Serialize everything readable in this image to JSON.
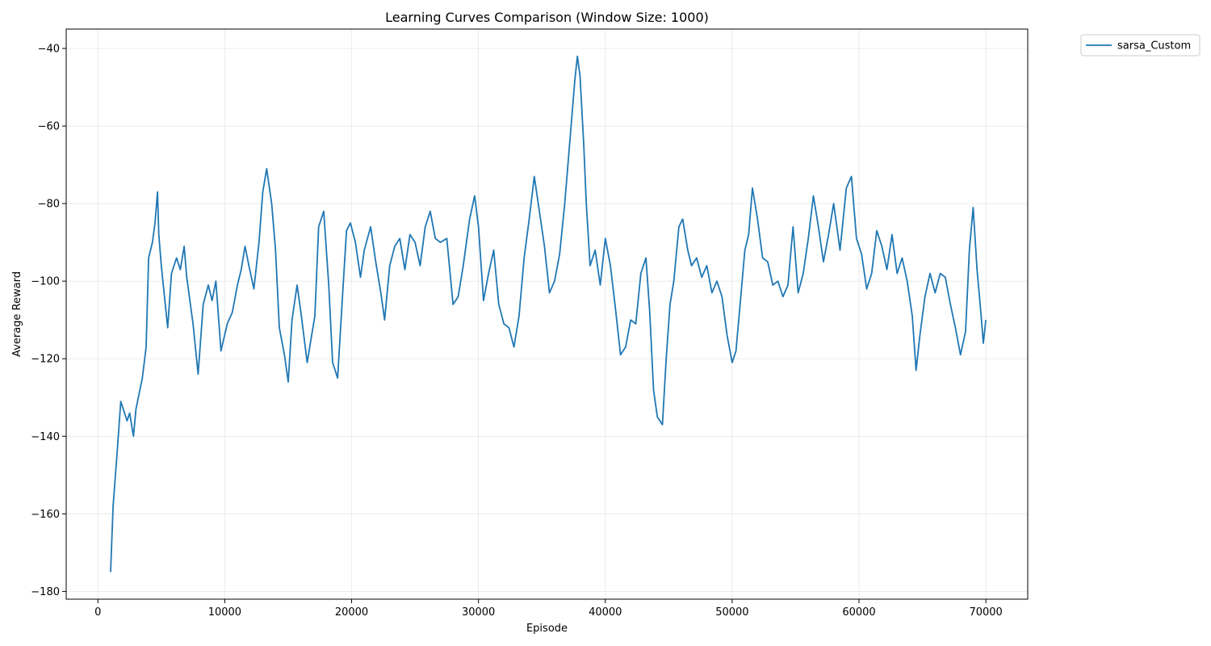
{
  "chart_data": {
    "type": "line",
    "title": "Learning Curves Comparison (Window Size: 1000)",
    "xlabel": "Episode",
    "ylabel": "Average Reward",
    "xlim": [
      -2500,
      73300
    ],
    "ylim": [
      -182,
      -35
    ],
    "xticks": [
      0,
      10000,
      20000,
      30000,
      40000,
      50000,
      60000,
      70000
    ],
    "yticks": [
      -180,
      -160,
      -140,
      -120,
      -100,
      -80,
      -60,
      -40
    ],
    "grid": true,
    "legend_position": "outside-top-right",
    "series": [
      {
        "name": "sarsa_Custom",
        "color": "#1f77b4",
        "x": [
          1000,
          1200,
          1500,
          1800,
          2000,
          2300,
          2500,
          2800,
          3000,
          3500,
          3800,
          4000,
          4300,
          4500,
          4700,
          4800,
          5000,
          5500,
          5800,
          6200,
          6500,
          6800,
          7000,
          7500,
          7900,
          8300,
          8700,
          9000,
          9300,
          9700,
          10200,
          10600,
          11000,
          11300,
          11600,
          11900,
          12300,
          12700,
          13000,
          13300,
          13700,
          14000,
          14300,
          14700,
          15000,
          15300,
          15700,
          16000,
          16500,
          16800,
          17100,
          17400,
          17800,
          18200,
          18500,
          18900,
          19300,
          19600,
          19900,
          20300,
          20700,
          21000,
          21500,
          21900,
          22300,
          22600,
          23000,
          23400,
          23800,
          24200,
          24600,
          25000,
          25400,
          25800,
          26200,
          26600,
          27000,
          27500,
          28000,
          28400,
          28800,
          29300,
          29700,
          30000,
          30400,
          30800,
          31200,
          31600,
          32000,
          32400,
          32800,
          33200,
          33600,
          34000,
          34400,
          34800,
          35200,
          35600,
          36000,
          36400,
          36800,
          37200,
          37600,
          37800,
          38000,
          38300,
          38500,
          38800,
          39200,
          39600,
          40000,
          40400,
          40800,
          41200,
          41600,
          42000,
          42400,
          42800,
          43200,
          43500,
          43800,
          44100,
          44500,
          44800,
          45100,
          45400,
          45800,
          46100,
          46500,
          46800,
          47200,
          47600,
          48000,
          48400,
          48800,
          49200,
          49600,
          50000,
          50300,
          50600,
          51000,
          51300,
          51600,
          52000,
          52400,
          52800,
          53200,
          53600,
          54000,
          54400,
          54800,
          55200,
          55600,
          56000,
          56400,
          56800,
          57200,
          57600,
          58000,
          58500,
          59000,
          59400,
          59800,
          60200,
          60600,
          61000,
          61400,
          61800,
          62200,
          62600,
          63000,
          63400,
          63800,
          64200,
          64500,
          64800,
          65200,
          65600,
          66000,
          66400,
          66800,
          67200,
          67600,
          68000,
          68400,
          68700,
          69000,
          69300,
          69600,
          69800,
          70000
        ],
        "y": [
          -175,
          -158,
          -145,
          -131,
          -133,
          -136,
          -134,
          -140,
          -133,
          -125,
          -117,
          -94,
          -90,
          -85,
          -77,
          -88,
          -96,
          -112,
          -98,
          -94,
          -97,
          -91,
          -99,
          -111,
          -124,
          -106,
          -101,
          -105,
          -100,
          -118,
          -111,
          -108,
          -101,
          -97,
          -91,
          -96,
          -102,
          -90,
          -77,
          -71,
          -80,
          -92,
          -112,
          -119,
          -126,
          -110,
          -101,
          -108,
          -121,
          -115,
          -109,
          -86,
          -82,
          -101,
          -121,
          -125,
          -103,
          -87,
          -85,
          -90,
          -99,
          -92,
          -86,
          -95,
          -103,
          -110,
          -96,
          -91,
          -89,
          -97,
          -88,
          -90,
          -96,
          -86,
          -82,
          -89,
          -90,
          -89,
          -106,
          -104,
          -96,
          -84,
          -78,
          -86,
          -105,
          -98,
          -92,
          -106,
          -111,
          -112,
          -117,
          -109,
          -94,
          -84,
          -73,
          -82,
          -91,
          -103,
          -100,
          -93,
          -80,
          -64,
          -48,
          -42,
          -47,
          -65,
          -80,
          -96,
          -92,
          -101,
          -89,
          -96,
          -107,
          -119,
          -117,
          -110,
          -111,
          -98,
          -94,
          -108,
          -128,
          -135,
          -137,
          -120,
          -106,
          -100,
          -86,
          -84,
          -92,
          -96,
          -94,
          -99,
          -96,
          -103,
          -100,
          -104,
          -114,
          -121,
          -118,
          -107,
          -92,
          -88,
          -76,
          -84,
          -94,
          -95,
          -101,
          -100,
          -104,
          -101,
          -86,
          -103,
          -98,
          -89,
          -78,
          -86,
          -95,
          -88,
          -80,
          -92,
          -76,
          -73,
          -89,
          -93,
          -102,
          -98,
          -87,
          -91,
          -97,
          -88,
          -98,
          -94,
          -100,
          -109,
          -123,
          -114,
          -104,
          -98,
          -103,
          -98,
          -99,
          -106,
          -112,
          -119,
          -113,
          -92,
          -81,
          -97,
          -108,
          -116,
          -110
        ]
      }
    ]
  }
}
